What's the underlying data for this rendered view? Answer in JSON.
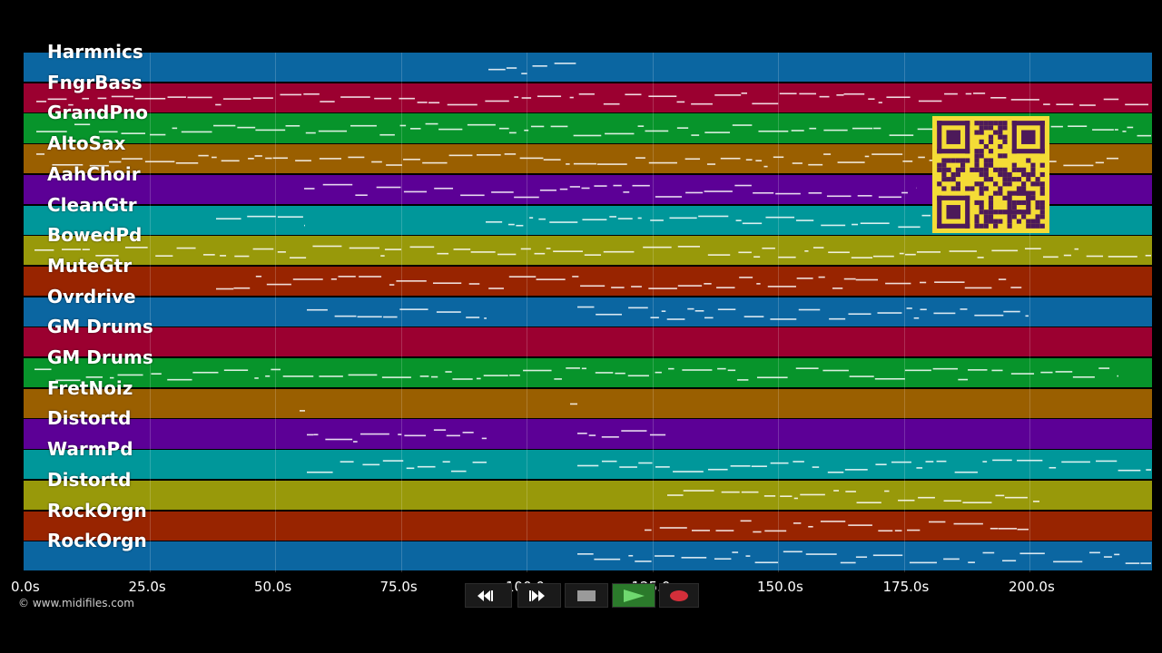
{
  "tracks": [
    {
      "name": "Harmnics",
      "color": "#0b66a1"
    },
    {
      "name": "FngrBass",
      "color": "#9b0030"
    },
    {
      "name": "GrandPno",
      "color": "#07942b"
    },
    {
      "name": "AltoSax",
      "color": "#9a5f00"
    },
    {
      "name": "AahChoir",
      "color": "#5c0096"
    },
    {
      "name": "CleanGtr",
      "color": "#00979a"
    },
    {
      "name": "BowedPd",
      "color": "#98990a"
    },
    {
      "name": "MuteGtr",
      "color": "#982400"
    },
    {
      "name": "Ovrdrive",
      "color": "#0b66a1"
    },
    {
      "name": "GM Drums",
      "color": "#9b0030"
    },
    {
      "name": "GM Drums",
      "color": "#07942b"
    },
    {
      "name": "FretNoiz",
      "color": "#9a5f00"
    },
    {
      "name": "Distortd",
      "color": "#5c0096"
    },
    {
      "name": "WarmPd",
      "color": "#00979a"
    },
    {
      "name": "Distortd",
      "color": "#98990a"
    },
    {
      "name": "RockOrgn",
      "color": "#982400"
    },
    {
      "name": "RockOrgn",
      "color": "#0b66a1"
    }
  ],
  "timeline": {
    "ticks": [
      "0.0s",
      "25.0s",
      "50.0s",
      "75.0s",
      "100.0s",
      "125.0s",
      "150.0s",
      "175.0s",
      "200.0s"
    ]
  },
  "copyright": "© www.midifiles.com",
  "transport": {
    "rewind": "rewind-icon",
    "fast_forward": "fast-forward-icon",
    "stop": "stop-icon",
    "play": "play-icon",
    "record": "record-icon"
  },
  "colors": {
    "qr_bg": "#f4dc36",
    "qr_fg": "#4d1a5a",
    "play_bg": "#2b7a2b"
  }
}
